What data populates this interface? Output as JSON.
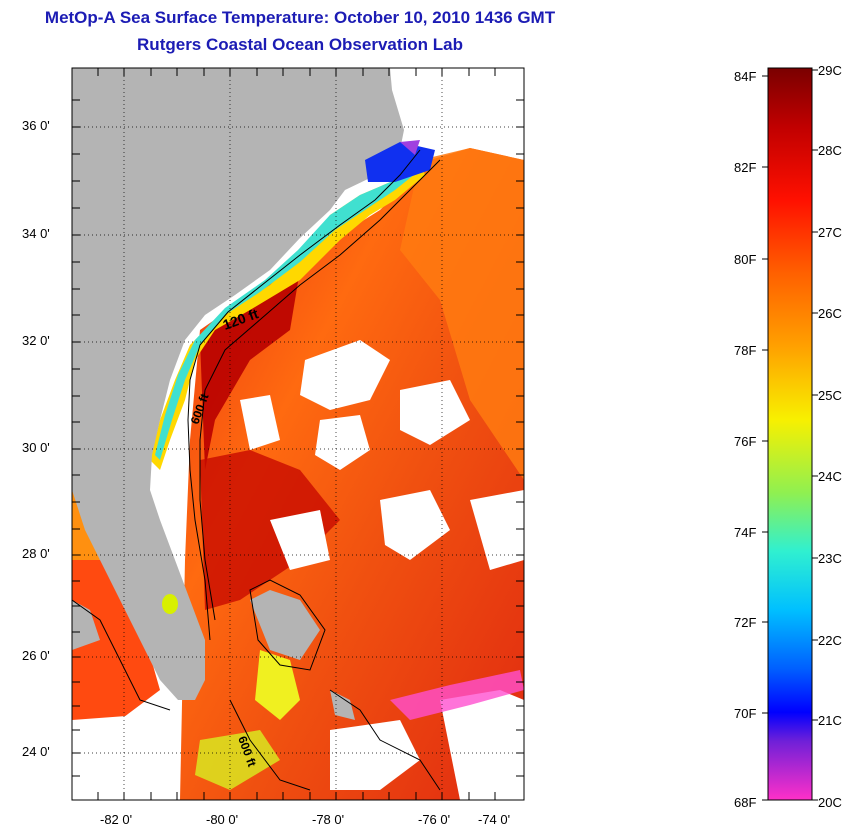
{
  "title": {
    "line1": "MetOp-A Sea Surface Temperature:  October 10, 2010 1436 GMT",
    "line2": "Rutgers Coastal Ocean Observation Lab"
  },
  "map": {
    "lat_labels": [
      "36 0'",
      "34 0'",
      "32 0'",
      "30 0'",
      "28 0'",
      "26 0'",
      "24 0'"
    ],
    "lon_labels": [
      "-82 0'",
      "-80 0'",
      "-78 0'",
      "-76 0'",
      "-74 0'"
    ],
    "isobath_labels": [
      "120 ft",
      "600 ft",
      "600 ft"
    ],
    "land_color": "#b4b4b4",
    "cloud_color": "#ffffff"
  },
  "colorbar": {
    "fahrenheit_labels": [
      "84F",
      "82F",
      "80F",
      "78F",
      "76F",
      "74F",
      "72F",
      "70F",
      "68F"
    ],
    "celsius_labels": [
      "29C",
      "28C",
      "27C",
      "26C",
      "25C",
      "24C",
      "23C",
      "22C",
      "21C",
      "20C"
    ],
    "stops": [
      "#7a0000",
      "#c80000",
      "#ff2a00",
      "#ff7a00",
      "#ffb300",
      "#f0f000",
      "#a0f040",
      "#40f0c0",
      "#00d8ff",
      "#0080ff",
      "#0000ff",
      "#8020d0",
      "#ff20c0",
      "#ff40d0"
    ]
  }
}
